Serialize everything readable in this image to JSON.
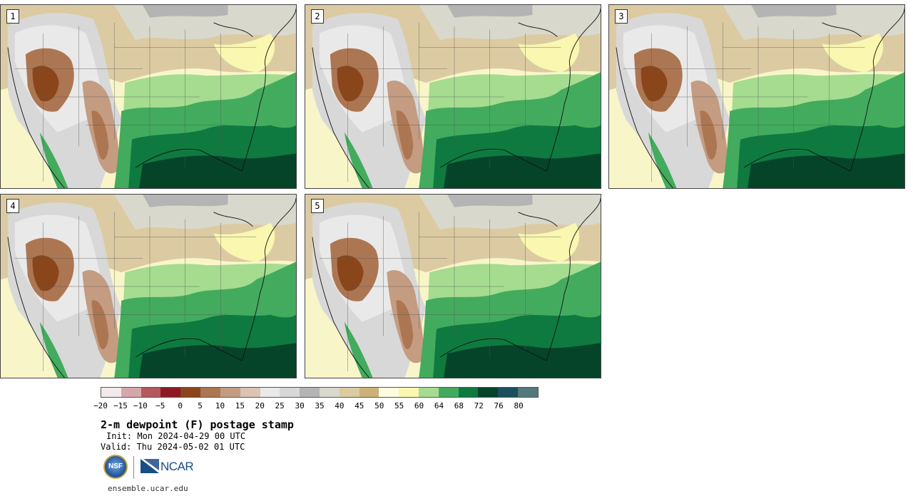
{
  "panels": [
    {
      "id": "1"
    },
    {
      "id": "2"
    },
    {
      "id": "3"
    },
    {
      "id": "4"
    },
    {
      "id": "5"
    }
  ],
  "colorbar": {
    "ticks": [
      "−20",
      "−15",
      "−10",
      "−5",
      "0",
      "5",
      "10",
      "15",
      "20",
      "25",
      "30",
      "35",
      "40",
      "45",
      "50",
      "55",
      "60",
      "64",
      "68",
      "72",
      "76",
      "80"
    ],
    "colors": [
      "#f4e9ea",
      "#d5a7a9",
      "#b5585e",
      "#8d1a22",
      "#8a461a",
      "#ad7652",
      "#c49c82",
      "#dcc3b3",
      "#e9e9e9",
      "#d8d8d8",
      "#b4b4b4",
      "#d9d8cc",
      "#dccba2",
      "#ccb27a",
      "#fdfde0",
      "#f9f7b0",
      "#a5dc90",
      "#43ab5e",
      "#0e7a3f",
      "#06442a",
      "#1b4f5d",
      "#53797a"
    ]
  },
  "title": "2-m dewpoint (F) postage stamp",
  "init": "Init: Mon 2024-04-29 00 UTC",
  "valid": "Valid: Thu 2024-05-02 01 UTC",
  "logos": {
    "nsf": "NSF",
    "ncar": "NCAR"
  },
  "site": "ensemble.ucar.edu"
}
